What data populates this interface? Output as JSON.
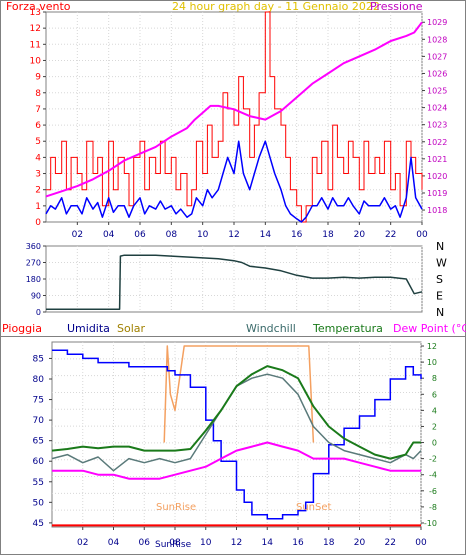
{
  "header": {
    "wind_label": "Forza vento",
    "title": "24 hour graph day - 11 Gennaio 2022",
    "pressure_label": "Pressione"
  },
  "legend": {
    "rain": "Pioggia",
    "humidity": "Umidita",
    "solar": "Solar",
    "windchill": "Windchill",
    "temperature": "Temperatura",
    "dewpoint": "Dew Point (°C)"
  },
  "annotations": {
    "sunrise": "SunRise",
    "sunset": "SunSet",
    "sunrise_axis": "SunRise"
  },
  "colors": {
    "wind_gust": "#ff0000",
    "wind_avg": "#0000ff",
    "pressure": "#ff00ff",
    "direction": "#1f4040",
    "humidity": "#0000ff",
    "windchill": "#5a7a7a",
    "temperature": "#1a7a1a",
    "dewpoint": "#ff00ff",
    "solar": "#f4a060",
    "rain": "#ff0000"
  },
  "chart_data": [
    {
      "type": "line",
      "name": "wind-pressure",
      "x_ticks": [
        "02",
        "04",
        "06",
        "08",
        "10",
        "12",
        "14",
        "16",
        "18",
        "20",
        "22",
        "00"
      ],
      "left_ticks": [
        "0",
        "1",
        "2",
        "3",
        "4",
        "5",
        "6",
        "7",
        "8",
        "9",
        "10",
        "11",
        "12",
        "13"
      ],
      "right_ticks": [
        "1018",
        "1019",
        "1020",
        "1021",
        "1022",
        "1023",
        "1024",
        "1025",
        "1026",
        "1027",
        "1028",
        "1029"
      ],
      "ylim_left": [
        0,
        13
      ],
      "ylim_right": [
        1017.3,
        1029.6
      ],
      "pressure": {
        "x": [
          0,
          1,
          2,
          3,
          4,
          5,
          6,
          7,
          8,
          9,
          9.5,
          10,
          10.5,
          11,
          12,
          13,
          14,
          15,
          16,
          17,
          18,
          19,
          20,
          21,
          22,
          23,
          23.5,
          24
        ],
        "y": [
          1018.8,
          1019.1,
          1019.4,
          1019.8,
          1020.3,
          1020.9,
          1021.3,
          1021.7,
          1022.3,
          1022.8,
          1023.3,
          1023.7,
          1024.1,
          1024.1,
          1023.9,
          1023.5,
          1023.3,
          1023.8,
          1024.6,
          1025.4,
          1026.0,
          1026.6,
          1027.0,
          1027.4,
          1027.9,
          1028.2,
          1028.4,
          1029.0
        ]
      },
      "gust": {
        "x": [
          0,
          0.3,
          0.6,
          1,
          1.3,
          1.6,
          2,
          2.3,
          2.6,
          3,
          3.3,
          3.6,
          4,
          4.3,
          4.6,
          5,
          5.3,
          5.6,
          6,
          6.3,
          6.6,
          7,
          7.3,
          7.6,
          8,
          8.3,
          8.6,
          9,
          9.3,
          9.6,
          10,
          10.3,
          10.6,
          11,
          11.3,
          11.6,
          12,
          12.3,
          12.6,
          13,
          13.3,
          13.6,
          14,
          14.3,
          14.6,
          15,
          15.3,
          15.6,
          16,
          16.3,
          16.6,
          17,
          17.3,
          17.6,
          18,
          18.3,
          18.6,
          19,
          19.3,
          19.6,
          20,
          20.3,
          20.6,
          21,
          21.3,
          21.6,
          22,
          22.3,
          22.6,
          23,
          23.3,
          23.6,
          24
        ],
        "y": [
          2,
          4,
          3,
          5,
          2,
          4,
          3,
          2,
          5,
          3,
          4,
          1,
          5,
          2,
          4,
          3,
          1,
          4,
          5,
          2,
          4,
          3,
          5,
          3,
          4,
          2,
          3,
          1,
          2,
          5,
          3,
          6,
          4,
          5,
          8,
          7,
          6,
          9,
          7,
          4,
          6,
          8,
          13,
          9,
          7,
          6,
          4,
          2,
          1,
          0,
          1,
          4,
          3,
          5,
          2,
          6,
          4,
          3,
          5,
          4,
          2,
          5,
          3,
          4,
          3,
          5,
          2,
          3,
          1,
          5,
          4,
          3,
          2
        ]
      },
      "avg": {
        "x": [
          0,
          0.3,
          0.6,
          1,
          1.3,
          1.6,
          2,
          2.3,
          2.6,
          3,
          3.3,
          3.6,
          4,
          4.3,
          4.6,
          5,
          5.3,
          5.6,
          6,
          6.3,
          6.6,
          7,
          7.3,
          7.6,
          8,
          8.3,
          8.6,
          9,
          9.3,
          9.6,
          10,
          10.3,
          10.6,
          11,
          11.3,
          11.6,
          12,
          12.3,
          12.6,
          13,
          13.3,
          13.6,
          14,
          14.3,
          14.6,
          15,
          15.3,
          15.6,
          16,
          16.3,
          16.6,
          17,
          17.3,
          17.6,
          18,
          18.3,
          18.6,
          19,
          19.3,
          19.6,
          20,
          20.3,
          20.6,
          21,
          21.3,
          21.6,
          22,
          22.3,
          22.6,
          23,
          23.3,
          23.6,
          24
        ],
        "y": [
          0.5,
          1,
          0.8,
          1.5,
          0.5,
          1,
          1,
          0.5,
          1.5,
          0.8,
          1.2,
          0.3,
          1.5,
          0.6,
          1,
          1,
          0.3,
          1,
          1.5,
          0.5,
          1,
          0.8,
          1.3,
          0.8,
          1,
          0.5,
          0.8,
          0.3,
          0.5,
          1.5,
          1,
          2,
          1.5,
          2,
          3,
          4,
          3,
          5,
          3,
          2,
          3,
          4,
          5,
          4,
          3,
          2,
          1,
          0.5,
          0.2,
          0,
          0.3,
          1,
          1,
          1.5,
          0.8,
          1.5,
          1,
          1,
          1.5,
          1,
          0.5,
          1.3,
          1,
          1,
          1,
          1.5,
          0.8,
          1,
          0.3,
          1.5,
          4,
          1.5,
          0.8
        ]
      }
    },
    {
      "type": "line",
      "name": "wind-direction",
      "x_ticks": [
        "02",
        "04",
        "06",
        "08",
        "10",
        "12",
        "14",
        "16",
        "18",
        "20",
        "22",
        "00"
      ],
      "left_ticks": [
        "0",
        "90",
        "180",
        "270",
        "360"
      ],
      "right_ticks": [
        "N",
        "E",
        "S",
        "W",
        "N"
      ],
      "ylim": [
        0,
        360
      ],
      "x": [
        0,
        1,
        2,
        3,
        4,
        4.7,
        4.75,
        5,
        6,
        7,
        8,
        9,
        10,
        11,
        12,
        12.5,
        13,
        14,
        15,
        16,
        17,
        18,
        19,
        20,
        21,
        22,
        23,
        23.5,
        24
      ],
      "y": [
        15,
        15,
        15,
        15,
        15,
        15,
        305,
        310,
        310,
        310,
        305,
        300,
        295,
        290,
        280,
        270,
        250,
        240,
        225,
        200,
        185,
        185,
        190,
        185,
        190,
        190,
        180,
        100,
        110
      ]
    },
    {
      "type": "line",
      "name": "temperature-humidity",
      "x_ticks": [
        "02",
        "04",
        "06",
        "08",
        "10",
        "12",
        "14",
        "16",
        "18",
        "20",
        "22",
        "00"
      ],
      "humidity_ticks": [
        "45",
        "50",
        "55",
        "60",
        "65",
        "70",
        "75",
        "80",
        "85"
      ],
      "temp_ticks": [
        "-10",
        "-8",
        "-6",
        "-4",
        "-2",
        "0",
        "2",
        "4",
        "6",
        "8",
        "10",
        "12"
      ],
      "humidity_ylim": [
        44,
        89
      ],
      "temp_ylim": [
        -10.5,
        12.5
      ],
      "humidity": {
        "x": [
          0,
          1,
          2,
          3,
          4,
          5,
          6,
          7,
          7.5,
          8,
          9,
          10,
          10.5,
          11,
          12,
          12.5,
          13,
          14,
          15,
          16,
          16.5,
          17,
          18,
          19,
          20,
          21,
          22,
          23,
          23.5,
          24
        ],
        "y": [
          87,
          86,
          85,
          84,
          84,
          83,
          83,
          83,
          82,
          81,
          78,
          70,
          65,
          60,
          53,
          50,
          47,
          46,
          47,
          48,
          50,
          57,
          64,
          68,
          71,
          75,
          80,
          83,
          81,
          80
        ]
      },
      "windchill": {
        "x": [
          0,
          1,
          2,
          3,
          4,
          5,
          6,
          7,
          8,
          9,
          10,
          11,
          12,
          13,
          14,
          15,
          16,
          17,
          18,
          19,
          20,
          21,
          22,
          23,
          23.5,
          24
        ],
        "y": [
          -2,
          -1.5,
          -2.5,
          -1.8,
          -3.5,
          -2,
          -2.5,
          -2,
          -2.5,
          -2,
          1,
          4,
          7,
          8,
          8.5,
          8,
          6,
          2,
          0,
          -1,
          -1.5,
          -2,
          -2.5,
          -1.5,
          -2,
          -1
        ]
      },
      "temperature": {
        "x": [
          0,
          1,
          2,
          3,
          4,
          5,
          6,
          7,
          8,
          9,
          10,
          11,
          12,
          13,
          14,
          15,
          16,
          17,
          18,
          19,
          20,
          21,
          22,
          23,
          23.5,
          24
        ],
        "y": [
          -1,
          -0.8,
          -0.5,
          -0.7,
          -0.5,
          -0.5,
          -1,
          -1,
          -1,
          -0.8,
          1.5,
          4,
          7,
          8.5,
          9.5,
          9,
          8,
          4.5,
          2,
          0.5,
          -0.5,
          -1.5,
          -2,
          -1.5,
          0,
          0
        ]
      },
      "dewpoint": {
        "x": [
          0,
          1,
          2,
          3,
          4,
          5,
          6,
          7,
          8,
          9,
          10,
          11,
          12,
          13,
          14,
          15,
          16,
          17,
          18,
          19,
          20,
          21,
          22,
          23,
          24
        ],
        "y": [
          -3.5,
          -3.5,
          -3.5,
          -4,
          -4,
          -4.5,
          -4.5,
          -4.5,
          -4,
          -3.5,
          -3,
          -2,
          -1,
          -0.5,
          0,
          -0.5,
          -1,
          -2,
          -2,
          -2,
          -2.5,
          -3,
          -3.5,
          -3.5,
          -3.5
        ]
      },
      "solar": {
        "x": [
          7.3,
          7.5,
          7.7,
          8.0,
          8.3,
          8.6,
          9.0,
          9.3,
          9.6,
          14,
          16.7,
          17
        ],
        "y": [
          0,
          12,
          6,
          4,
          8,
          12,
          12,
          12,
          12,
          12,
          12,
          0
        ]
      },
      "rain": {
        "x": [
          0,
          24
        ],
        "y": [
          0,
          0
        ]
      }
    }
  ]
}
